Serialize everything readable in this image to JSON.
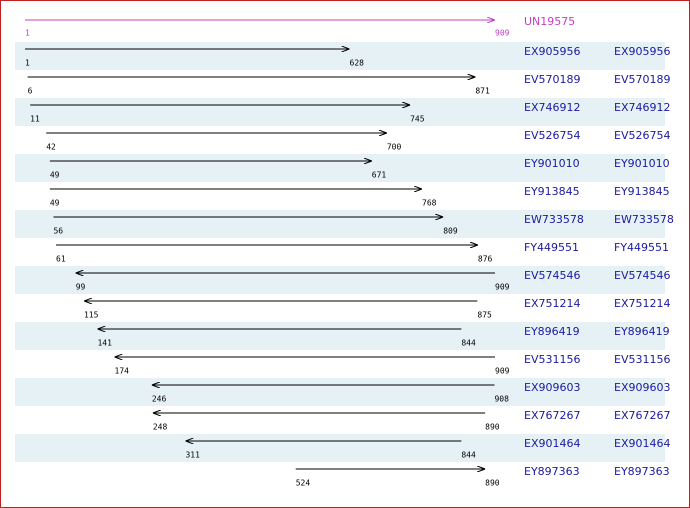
{
  "reference": {
    "name": "UN19575",
    "start": 1,
    "end": 909
  },
  "rows": [
    {
      "name": "EX905956",
      "link": "EX905956",
      "start": 1,
      "end": 628,
      "direction": "forward"
    },
    {
      "name": "EV570189",
      "link": "EV570189",
      "start": 6,
      "end": 871,
      "direction": "forward"
    },
    {
      "name": "EX746912",
      "link": "EX746912",
      "start": 11,
      "end": 745,
      "direction": "forward"
    },
    {
      "name": "EV526754",
      "link": "EV526754",
      "start": 42,
      "end": 700,
      "direction": "forward"
    },
    {
      "name": "EY901010",
      "link": "EY901010",
      "start": 49,
      "end": 671,
      "direction": "forward"
    },
    {
      "name": "EY913845",
      "link": "EY913845",
      "start": 49,
      "end": 768,
      "direction": "forward"
    },
    {
      "name": "EW733578",
      "link": "EW733578",
      "start": 56,
      "end": 809,
      "direction": "forward"
    },
    {
      "name": "FY449551",
      "link": "FY449551",
      "start": 61,
      "end": 876,
      "direction": "forward"
    },
    {
      "name": "EV574546",
      "link": "EV574546",
      "start": 99,
      "end": 909,
      "direction": "reverse"
    },
    {
      "name": "EX751214",
      "link": "EX751214",
      "start": 115,
      "end": 875,
      "direction": "reverse"
    },
    {
      "name": "EY896419",
      "link": "EY896419",
      "start": 141,
      "end": 844,
      "direction": "reverse"
    },
    {
      "name": "EV531156",
      "link": "EV531156",
      "start": 174,
      "end": 909,
      "direction": "reverse"
    },
    {
      "name": "EX909603",
      "link": "EX909603",
      "start": 246,
      "end": 908,
      "direction": "reverse"
    },
    {
      "name": "EX767267",
      "link": "EX767267",
      "start": 248,
      "end": 890,
      "direction": "reverse"
    },
    {
      "name": "EX901464",
      "link": "EX901464",
      "start": 311,
      "end": 844,
      "direction": "reverse"
    },
    {
      "name": "EY897363",
      "link": "EY897363",
      "start": 524,
      "end": 890,
      "direction": "forward"
    }
  ]
}
